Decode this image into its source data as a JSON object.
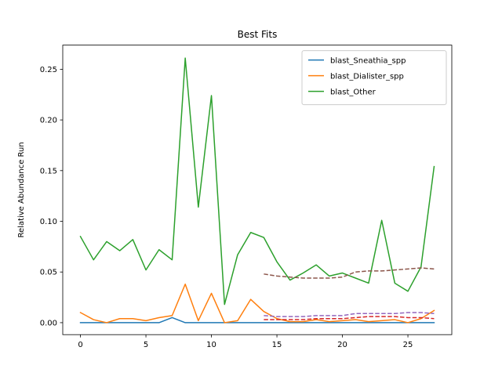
{
  "chart_data": {
    "type": "line",
    "title": "Best Fits",
    "xlabel": "",
    "ylabel": "Relative Abundance Run",
    "xlim": [
      -1.35,
      28.35
    ],
    "ylim": [
      -0.0118,
      0.2738
    ],
    "x_ticks": [
      0,
      5,
      10,
      15,
      20,
      25
    ],
    "y_ticks": [
      0.0,
      0.05,
      0.1,
      0.15,
      0.2,
      0.25
    ],
    "y_tick_labels": [
      "0.00",
      "0.05",
      "0.10",
      "0.15",
      "0.20",
      "0.25"
    ],
    "grid": false,
    "legend_position": "top-right",
    "x": [
      0,
      1,
      2,
      3,
      4,
      5,
      6,
      7,
      8,
      9,
      10,
      11,
      12,
      13,
      14,
      15,
      16,
      17,
      18,
      19,
      20,
      21,
      22,
      23,
      24,
      25,
      26,
      27
    ],
    "series": [
      {
        "name": "blast_Sneathia_spp",
        "color": "#1f77b4",
        "style": "solid",
        "values": [
          0.0,
          0.0,
          0.0,
          0.0,
          0.0,
          0.0,
          0.0,
          0.005,
          0.0,
          0.0,
          0.0,
          0.0,
          0.0,
          0.0,
          0.0,
          0.0,
          0.0,
          0.0,
          0.0,
          0.0,
          0.0,
          0.0,
          0.0,
          0.0,
          0.0,
          0.0,
          0.0,
          0.0
        ]
      },
      {
        "name": "blast_Dialister_spp",
        "color": "#ff7f0e",
        "style": "solid",
        "values": [
          0.01,
          0.003,
          0.0,
          0.004,
          0.004,
          0.002,
          0.005,
          0.007,
          0.038,
          0.002,
          0.029,
          0.0,
          0.002,
          0.023,
          0.011,
          0.004,
          0.001,
          0.001,
          0.003,
          0.001,
          0.002,
          0.003,
          0.001,
          0.002,
          0.003,
          0.0,
          0.004,
          0.012
        ]
      },
      {
        "name": "blast_Other",
        "color": "#2ca02c",
        "style": "solid",
        "values": [
          0.085,
          0.062,
          0.08,
          0.071,
          0.082,
          0.052,
          0.072,
          0.062,
          0.261,
          0.114,
          0.224,
          0.018,
          0.067,
          0.089,
          0.084,
          0.06,
          0.042,
          0.049,
          0.057,
          0.046,
          0.049,
          0.044,
          0.039,
          0.101,
          0.039,
          0.031,
          0.055,
          0.154
        ]
      },
      {
        "color": "#8c564b",
        "style": "dashed",
        "x": [
          14,
          15,
          16,
          17,
          18,
          19,
          20,
          21,
          22,
          23,
          24,
          25,
          26,
          27
        ],
        "values": [
          0.048,
          0.046,
          0.045,
          0.044,
          0.044,
          0.044,
          0.045,
          0.05,
          0.051,
          0.051,
          0.052,
          0.053,
          0.054,
          0.053
        ]
      },
      {
        "color": "#9467bd",
        "style": "dashed",
        "x": [
          14,
          15,
          16,
          17,
          18,
          19,
          20,
          21,
          22,
          23,
          24,
          25,
          26,
          27
        ],
        "values": [
          0.007,
          0.006,
          0.006,
          0.006,
          0.007,
          0.007,
          0.007,
          0.009,
          0.009,
          0.009,
          0.009,
          0.01,
          0.01,
          0.009
        ]
      },
      {
        "color": "#d62728",
        "style": "dashed",
        "x": [
          14,
          15,
          16,
          17,
          18,
          19,
          20,
          21,
          22,
          23,
          24,
          25,
          26,
          27
        ],
        "values": [
          0.003,
          0.003,
          0.003,
          0.003,
          0.004,
          0.004,
          0.004,
          0.005,
          0.006,
          0.006,
          0.006,
          0.005,
          0.005,
          0.004
        ]
      }
    ]
  }
}
